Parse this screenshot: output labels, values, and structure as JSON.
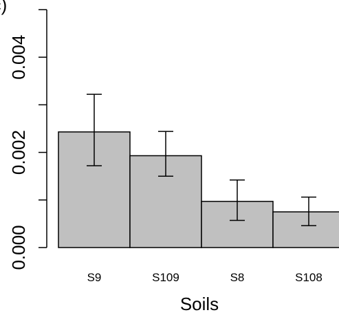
{
  "chart_data": {
    "type": "bar",
    "panel_label": "(c)",
    "title": "",
    "xlabel": "Soils",
    "ylabel": "",
    "categories": [
      "S9",
      "S109",
      "S8",
      "S108"
    ],
    "values": [
      0.00243,
      0.00193,
      0.00097,
      0.00075
    ],
    "error_low": [
      0.00172,
      0.0015,
      0.00057,
      0.00046
    ],
    "error_high": [
      0.00322,
      0.00244,
      0.00142,
      0.00106
    ],
    "ylim": [
      0,
      0.005
    ],
    "yticks": [
      0.0,
      0.002,
      0.004
    ],
    "ytick_labels": [
      "0.000",
      "0.002",
      "0.004"
    ],
    "bar_color": "#c0c0c0",
    "grid": false
  }
}
